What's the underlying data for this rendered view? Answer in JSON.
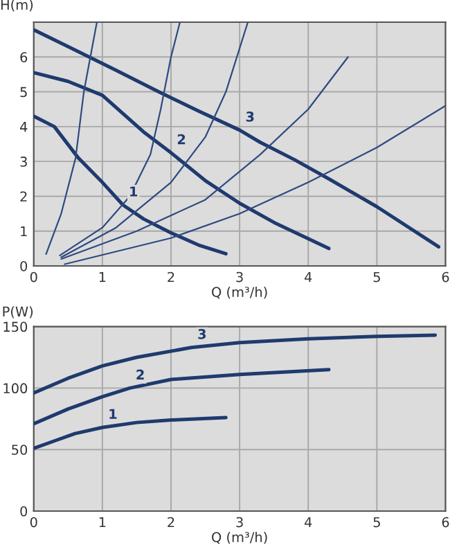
{
  "chart_data": [
    {
      "type": "line",
      "xlabel": "Q (m³/h)",
      "ylabel": "H(m)",
      "xlim": [
        0,
        6
      ],
      "ylim": [
        0,
        7
      ],
      "xticks": [
        0,
        1,
        2,
        3,
        4,
        5,
        6
      ],
      "yticks": [
        0,
        1,
        2,
        3,
        4,
        5,
        6
      ],
      "grid": true,
      "series": [
        {
          "name": "3",
          "color": "#1f3a6e",
          "x": [
            0,
            0.5,
            1.2,
            1.8,
            2.4,
            3.0,
            3.3,
            3.8,
            4.3,
            5.0,
            5.9
          ],
          "values": [
            6.78,
            6.3,
            5.62,
            5.02,
            4.45,
            3.9,
            3.55,
            3.05,
            2.5,
            1.7,
            0.55
          ]
        },
        {
          "name": "2",
          "color": "#1f3a6e",
          "x": [
            0,
            0.5,
            1.0,
            1.6,
            2.0,
            2.5,
            3.0,
            3.5,
            4.3
          ],
          "values": [
            5.55,
            5.3,
            4.9,
            3.85,
            3.25,
            2.45,
            1.8,
            1.25,
            0.5
          ]
        },
        {
          "name": "1",
          "color": "#1f3a6e",
          "x": [
            0,
            0.3,
            0.65,
            1.0,
            1.3,
            1.6,
            2.0,
            2.4,
            2.8
          ],
          "values": [
            4.3,
            4.0,
            3.1,
            2.4,
            1.75,
            1.35,
            0.95,
            0.6,
            0.35
          ]
        },
        {
          "color": "#2e4a80",
          "x": [
            0.18,
            0.4,
            0.61,
            0.73,
            0.92
          ],
          "values": [
            0.34,
            1.5,
            3.1,
            5.0,
            7.0
          ]
        },
        {
          "color": "#2e4a80",
          "x": [
            0.38,
            1.0,
            1.4,
            1.7,
            1.85,
            2.0,
            2.13
          ],
          "values": [
            0.3,
            1.1,
            2.0,
            3.2,
            4.5,
            6.0,
            7.0
          ]
        },
        {
          "color": "#2e4a80",
          "x": [
            0.4,
            1.2,
            2.0,
            2.5,
            2.8,
            3.12
          ],
          "values": [
            0.25,
            1.1,
            2.4,
            3.7,
            5.0,
            7.0
          ]
        },
        {
          "color": "#2e4a80",
          "x": [
            0.4,
            1.5,
            2.5,
            3.3,
            4.0,
            4.58
          ],
          "values": [
            0.2,
            1.0,
            1.9,
            3.2,
            4.5,
            6.0
          ]
        },
        {
          "color": "#2e4a80",
          "x": [
            0.45,
            2.0,
            3.0,
            4.0,
            5.0,
            6.0
          ],
          "values": [
            0.05,
            0.8,
            1.5,
            2.4,
            3.4,
            4.6
          ]
        }
      ]
    },
    {
      "type": "line",
      "xlabel": "Q (m³/h)",
      "ylabel": "P(W)",
      "xlim": [
        0,
        6
      ],
      "ylim": [
        0,
        150
      ],
      "xticks": [
        0,
        1,
        2,
        3,
        4,
        5,
        6
      ],
      "yticks": [
        0,
        50,
        100,
        150
      ],
      "grid": true,
      "series": [
        {
          "name": "3",
          "color": "#1f3a6e",
          "x": [
            0,
            0.5,
            1.0,
            1.5,
            2.3,
            3.0,
            4.0,
            5.0,
            5.85
          ],
          "values": [
            96,
            108,
            118,
            125,
            133,
            137,
            140,
            142,
            143
          ]
        },
        {
          "name": "2",
          "color": "#1f3a6e",
          "x": [
            0,
            0.5,
            1.0,
            1.4,
            2.0,
            3.0,
            4.3
          ],
          "values": [
            71,
            83,
            93,
            100,
            107,
            111,
            115
          ]
        },
        {
          "name": "1",
          "color": "#1f3a6e",
          "x": [
            0,
            0.3,
            0.6,
            1.0,
            1.5,
            2.0,
            2.8
          ],
          "values": [
            51,
            57,
            63,
            68,
            72,
            74,
            76
          ]
        }
      ]
    }
  ]
}
